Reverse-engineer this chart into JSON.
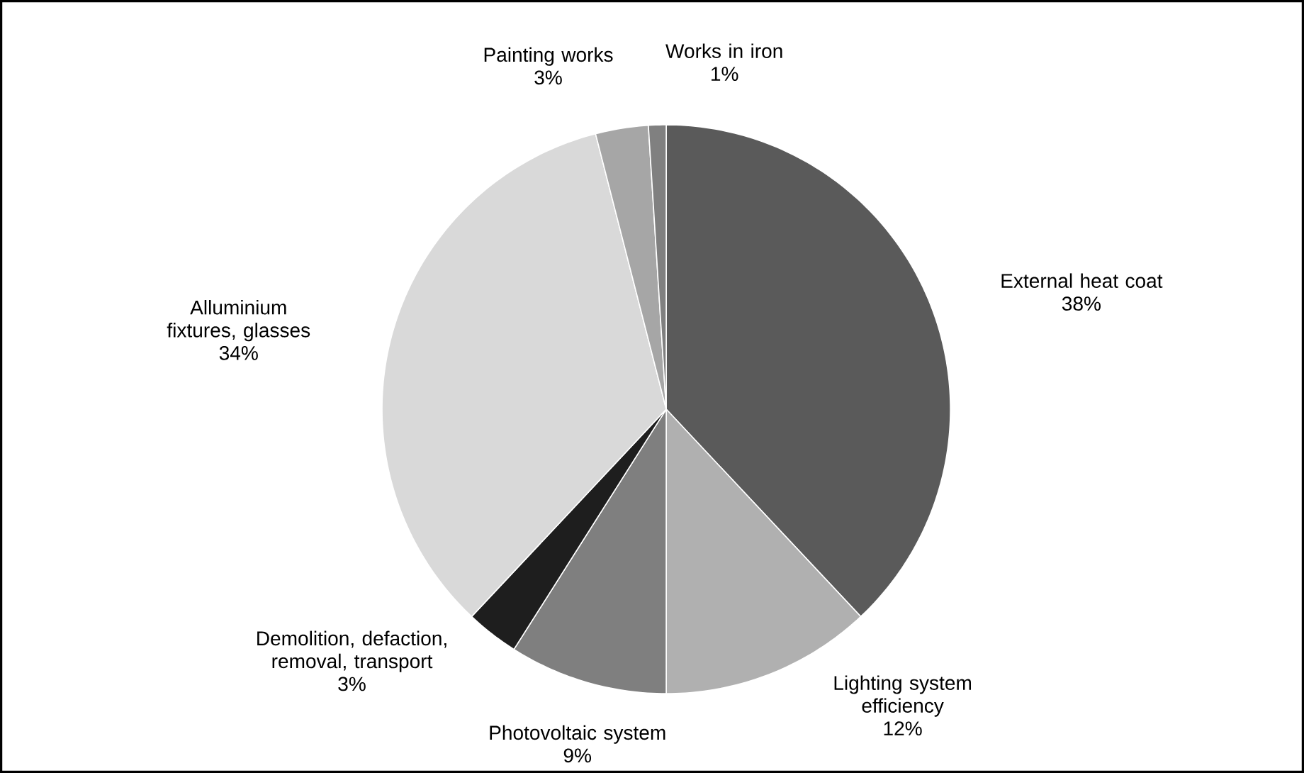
{
  "chart_data": {
    "type": "pie",
    "categories": [
      "External heat coat",
      "Lighting system efficiency",
      "Photovoltaic system",
      "Demolition, defaction, removal, transport",
      "Alluminium fixtures, glasses",
      "Painting works",
      "Works in iron"
    ],
    "values": [
      38,
      12,
      9,
      3,
      34,
      3,
      1
    ],
    "value_labels": [
      "38%",
      "12%",
      "9%",
      "3%",
      "34%",
      "3%",
      "1%"
    ],
    "colors": [
      "#5a5a5a",
      "#b0b0b0",
      "#7f7f7f",
      "#1e1e1e",
      "#d9d9d9",
      "#a6a6a6",
      "#808080"
    ]
  }
}
